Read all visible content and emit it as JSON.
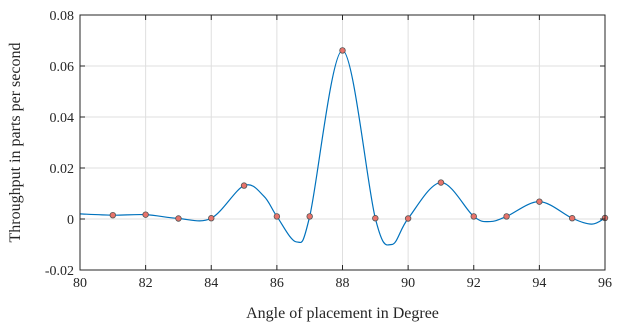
{
  "chart_data": {
    "type": "line",
    "title": "",
    "xlabel": "Angle of placement in Degree",
    "ylabel": "Throughput in parts per second",
    "xlim": [
      80,
      96
    ],
    "ylim": [
      -0.02,
      0.08
    ],
    "xticks": [
      80,
      82,
      84,
      86,
      88,
      90,
      92,
      94,
      96
    ],
    "xtick_labels": [
      "80",
      "82",
      "84",
      "86",
      "88",
      "90",
      "92",
      "94",
      "96"
    ],
    "yticks": [
      -0.02,
      0,
      0.02,
      0.04,
      0.06,
      0.08
    ],
    "ytick_labels": [
      "-0.02",
      "0",
      "0.02",
      "0.04",
      "0.06",
      "0.08"
    ],
    "grid": true,
    "series": [
      {
        "style": "smooth-interpolated-curve",
        "color": "#0072BD",
        "x": [
          80,
          81,
          82,
          83,
          84,
          85,
          85.6,
          86,
          86.6,
          87,
          88,
          89,
          89.5,
          90,
          91,
          92,
          92.5,
          93,
          94,
          95,
          95.6,
          96
        ],
        "y": [
          0.002,
          0.0015,
          0.0017,
          0.0002,
          0.0003,
          0.0131,
          0.009,
          0.001,
          -0.009,
          0.001,
          0.0661,
          0.0003,
          -0.01,
          0.0002,
          0.0143,
          0.001,
          -0.001,
          0.001,
          0.0068,
          0.0003,
          -0.002,
          0.0004
        ]
      },
      {
        "style": "markers",
        "marker": "circle",
        "marker_face_color": "#E8736B",
        "marker_edge_color": "#555555",
        "x": [
          81,
          82,
          83,
          84,
          85,
          86,
          87,
          88,
          89,
          90,
          91,
          92,
          93,
          94,
          95,
          96
        ],
        "y": [
          0.0015,
          0.0017,
          0.0002,
          0.0003,
          0.0131,
          0.001,
          0.001,
          0.0661,
          0.0003,
          0.0002,
          0.0143,
          0.001,
          0.001,
          0.0068,
          0.0003,
          0.0004
        ]
      }
    ]
  }
}
